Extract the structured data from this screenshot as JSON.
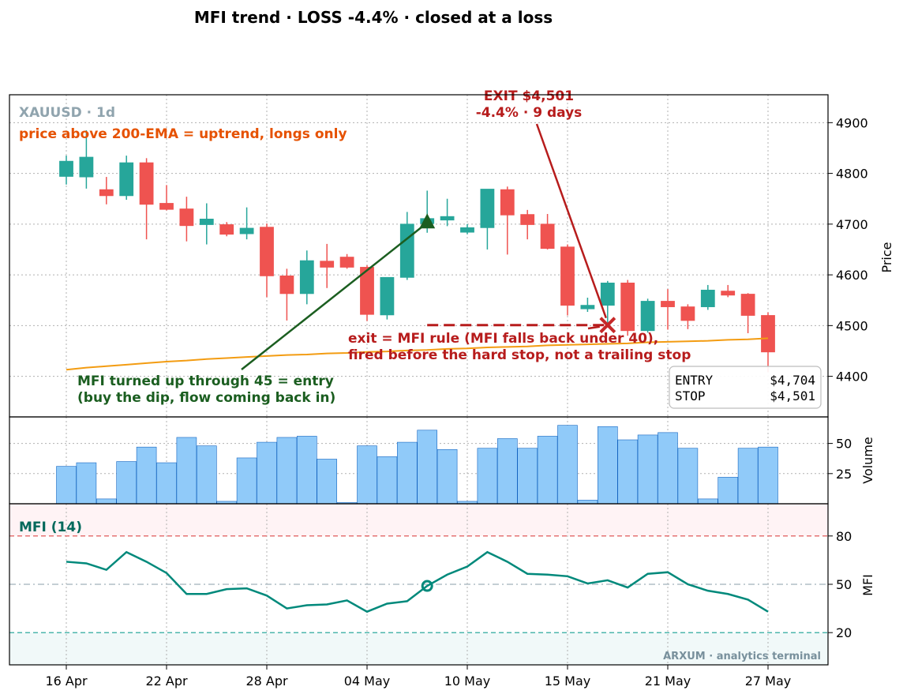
{
  "chart_data": {
    "type": "candlestick",
    "title": "MFI trend  ·  LOSS -4.4%  ·  closed at a loss",
    "symbol_label": "XAUUSD · 1d",
    "x_tick_labels": [
      "16 Apr",
      "22 Apr",
      "28 Apr",
      "04 May",
      "10 May",
      "15 May",
      "21 May",
      "27 May"
    ],
    "x_tick_index": [
      0,
      5,
      10,
      15,
      20,
      25,
      30,
      35
    ],
    "price_panel": {
      "ylabel": "Price",
      "ylim": [
        4320,
        4955
      ],
      "yticks": [
        4400,
        4500,
        4600,
        4700,
        4800,
        4900
      ],
      "ytick_labels": [
        "4400",
        "4500",
        "4600",
        "4700",
        "4800",
        "4900"
      ],
      "note": "price above 200-EMA = uptrend, longs only",
      "candles": [
        {
          "o": 4794,
          "h": 4835,
          "l": 4778,
          "c": 4824
        },
        {
          "o": 4793,
          "h": 4885,
          "l": 4770,
          "c": 4832
        },
        {
          "o": 4768,
          "h": 4793,
          "l": 4739,
          "c": 4756
        },
        {
          "o": 4756,
          "h": 4835,
          "l": 4748,
          "c": 4821
        },
        {
          "o": 4821,
          "h": 4830,
          "l": 4670,
          "c": 4739
        },
        {
          "o": 4741,
          "h": 4777,
          "l": 4727,
          "c": 4729
        },
        {
          "o": 4730,
          "h": 4754,
          "l": 4666,
          "c": 4697
        },
        {
          "o": 4699,
          "h": 4741,
          "l": 4660,
          "c": 4710
        },
        {
          "o": 4699,
          "h": 4704,
          "l": 4676,
          "c": 4680
        },
        {
          "o": 4681,
          "h": 4733,
          "l": 4670,
          "c": 4692
        },
        {
          "o": 4694,
          "h": 4701,
          "l": 4556,
          "c": 4598
        },
        {
          "o": 4598,
          "h": 4612,
          "l": 4510,
          "c": 4563
        },
        {
          "o": 4563,
          "h": 4648,
          "l": 4542,
          "c": 4628
        },
        {
          "o": 4627,
          "h": 4661,
          "l": 4574,
          "c": 4615
        },
        {
          "o": 4635,
          "h": 4641,
          "l": 4612,
          "c": 4615
        },
        {
          "o": 4615,
          "h": 4619,
          "l": 4509,
          "c": 4522
        },
        {
          "o": 4521,
          "h": 4595,
          "l": 4512,
          "c": 4595
        },
        {
          "o": 4595,
          "h": 4724,
          "l": 4590,
          "c": 4700
        },
        {
          "o": 4701,
          "h": 4766,
          "l": 4683,
          "c": 4711
        },
        {
          "o": 4708,
          "h": 4750,
          "l": 4696,
          "c": 4715
        },
        {
          "o": 4684,
          "h": 4700,
          "l": 4680,
          "c": 4693
        },
        {
          "o": 4693,
          "h": 4769,
          "l": 4650,
          "c": 4769
        },
        {
          "o": 4768,
          "h": 4774,
          "l": 4640,
          "c": 4718
        },
        {
          "o": 4719,
          "h": 4728,
          "l": 4670,
          "c": 4699
        },
        {
          "o": 4700,
          "h": 4720,
          "l": 4650,
          "c": 4652
        },
        {
          "o": 4655,
          "h": 4660,
          "l": 4520,
          "c": 4540
        },
        {
          "o": 4533,
          "h": 4555,
          "l": 4527,
          "c": 4540
        },
        {
          "o": 4540,
          "h": 4588,
          "l": 4500,
          "c": 4584
        },
        {
          "o": 4584,
          "h": 4590,
          "l": 4480,
          "c": 4490
        },
        {
          "o": 4490,
          "h": 4553,
          "l": 4486,
          "c": 4548
        },
        {
          "o": 4548,
          "h": 4572,
          "l": 4492,
          "c": 4537
        },
        {
          "o": 4537,
          "h": 4542,
          "l": 4493,
          "c": 4510
        },
        {
          "o": 4537,
          "h": 4580,
          "l": 4531,
          "c": 4570
        },
        {
          "o": 4568,
          "h": 4580,
          "l": 4556,
          "c": 4560
        },
        {
          "o": 4562,
          "h": 4564,
          "l": 4485,
          "c": 4520
        },
        {
          "o": 4520,
          "h": 4526,
          "l": 4408,
          "c": 4448
        }
      ],
      "ema200": [
        4413,
        4417,
        4420,
        4423,
        4426,
        4429,
        4431,
        4434,
        4436,
        4438,
        4440,
        4442,
        4443,
        4445,
        4446,
        4448,
        4449,
        4451,
        4452,
        4454,
        4455,
        4457,
        4458,
        4459,
        4461,
        4462,
        4463,
        4464,
        4465,
        4467,
        4468,
        4469,
        4470,
        4472,
        4473,
        4475
      ],
      "ema_color": "#f39c12",
      "entry": {
        "index": 18,
        "price": 4704
      },
      "exit": {
        "index": 27,
        "price": 4501
      },
      "entry_note_lines": [
        "MFI turned up through 45 = entry",
        "(buy the dip, flow coming back in)"
      ],
      "exit_label_lines": [
        "EXIT $4,501",
        "-4.4%  ·  9 days"
      ],
      "exit_rule_lines": [
        "exit = MFI rule (MFI falls back under 40),",
        "fired before the hard stop, not a trailing stop"
      ],
      "stop_line": {
        "from_index": 18,
        "to_index": 27,
        "price": 4501
      },
      "info_box": [
        {
          "label": "ENTRY",
          "value": "$4,704"
        },
        {
          "label": "STOP",
          "value": "$4,501"
        }
      ]
    },
    "volume_panel": {
      "ylabel": "Volume",
      "ylim": [
        0,
        72
      ],
      "yticks": [
        25,
        50
      ],
      "ytick_labels": [
        "25",
        "50"
      ],
      "values": [
        31,
        34,
        4,
        35,
        47,
        34,
        55,
        48,
        2,
        38,
        51,
        55,
        56,
        37,
        1,
        48,
        39,
        51,
        61,
        45,
        2,
        46,
        54,
        46,
        56,
        65,
        3,
        64,
        53,
        57,
        59,
        46,
        4,
        22,
        46,
        47
      ]
    },
    "mfi_panel": {
      "label": "MFI (14)",
      "ylabel": "MFI",
      "ylim": [
        0,
        100
      ],
      "yticks": [
        20,
        50,
        80
      ],
      "ytick_labels": [
        "20",
        "50",
        "80"
      ],
      "overbought": 80,
      "oversold": 20,
      "midline": 50,
      "values": [
        64,
        63,
        59,
        70,
        64,
        57,
        44,
        44,
        47,
        47.5,
        43,
        35,
        37,
        37.5,
        40,
        33,
        38,
        39.5,
        49,
        56,
        61,
        70,
        64,
        56.5,
        56,
        55,
        50.5,
        52.5,
        48,
        56.5,
        57.5,
        50,
        46,
        44,
        40.5,
        33
      ],
      "cross_marker_index": 18,
      "line_color": "#00897b"
    },
    "colors": {
      "up": "#26a69a",
      "down": "#ef5350",
      "entry": "#1b5e20",
      "exit": "#b71c1c",
      "note": "#e65100",
      "volume": "#90caf9"
    }
  },
  "watermark": "ARXUM · analytics terminal"
}
